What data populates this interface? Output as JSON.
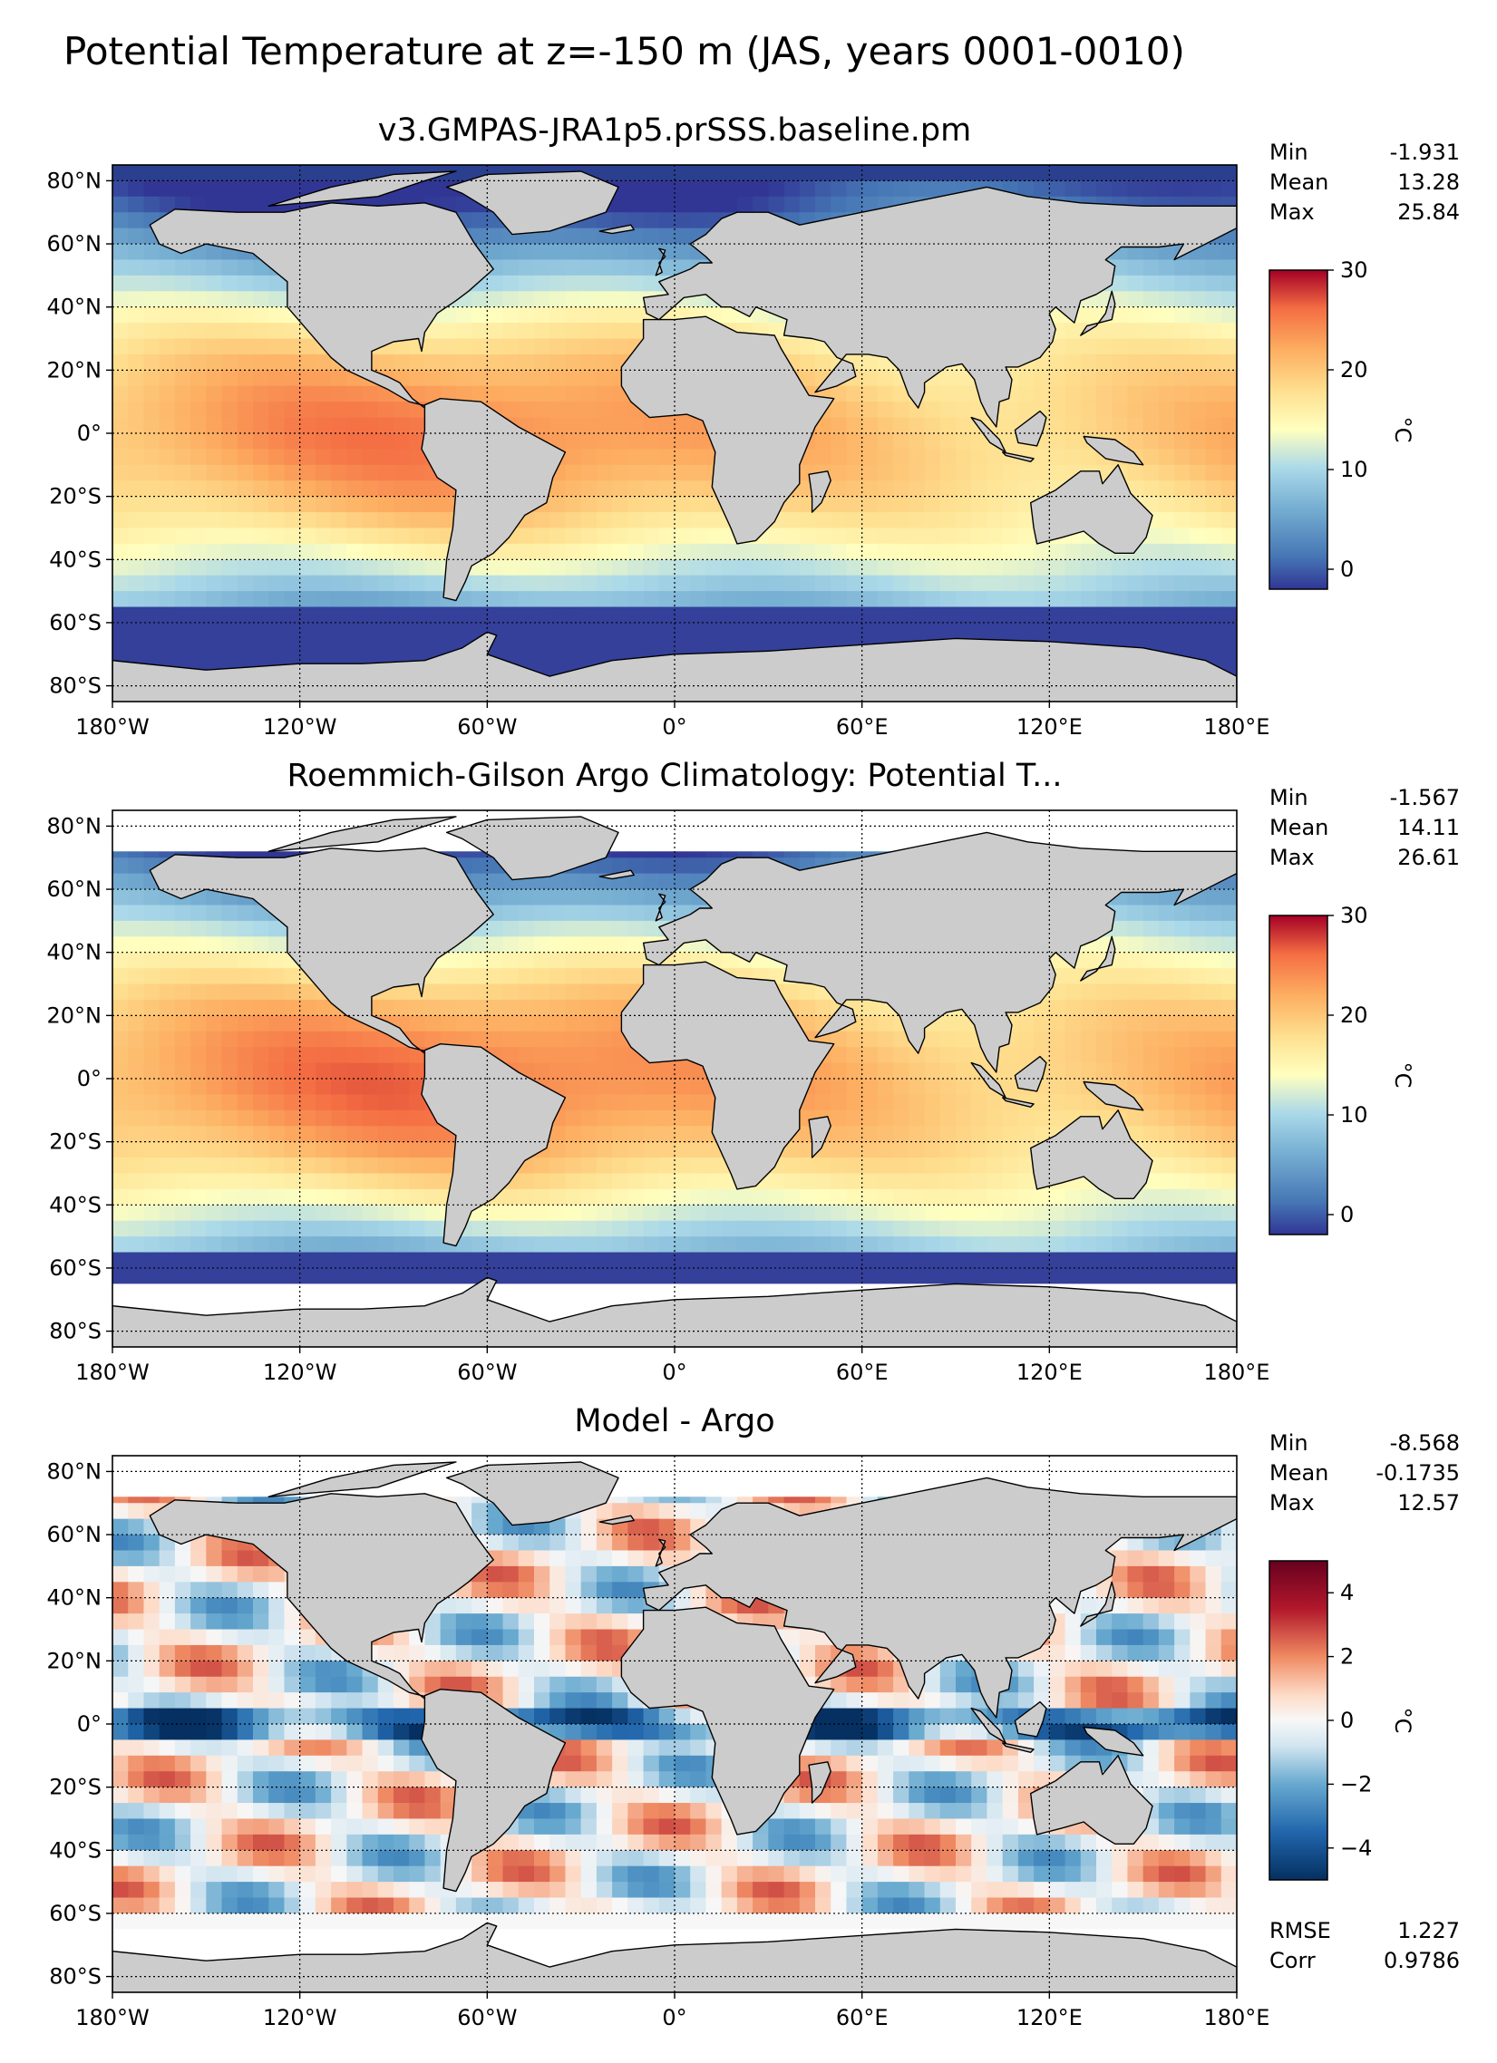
{
  "suptitle": "Potential Temperature at z=-150 m (JAS, years 0001-0010)",
  "panels": [
    {
      "title": "v3.GMPAS-JRA1p5.prSSS.baseline.pm",
      "stats": [
        {
          "label": "Min",
          "value": "-1.931"
        },
        {
          "label": "Mean",
          "value": "13.28"
        },
        {
          "label": "Max",
          "value": "25.84"
        }
      ],
      "colorbar": {
        "ticks": [
          "30",
          "20",
          "10",
          "0"
        ],
        "unit": "°C",
        "cmap": "RdYlBu_r",
        "range": [
          -2,
          30
        ]
      },
      "extra_stats": []
    },
    {
      "title": "Roemmich-Gilson Argo Climatology: Potential T...",
      "stats": [
        {
          "label": "Min",
          "value": "-1.567"
        },
        {
          "label": "Mean",
          "value": "14.11"
        },
        {
          "label": "Max",
          "value": "26.61"
        }
      ],
      "colorbar": {
        "ticks": [
          "30",
          "20",
          "10",
          "0"
        ],
        "unit": "°C",
        "cmap": "RdYlBu_r",
        "range": [
          -2,
          30
        ]
      },
      "extra_stats": []
    },
    {
      "title": "Model - Argo",
      "stats": [
        {
          "label": "Min",
          "value": "-8.568"
        },
        {
          "label": "Mean",
          "value": "-0.1735"
        },
        {
          "label": "Max",
          "value": "12.57"
        }
      ],
      "colorbar": {
        "ticks": [
          "4",
          "2",
          "0",
          "−2",
          "−4"
        ],
        "unit": "°C",
        "cmap": "RdBu_r",
        "range": [
          -5,
          5
        ]
      },
      "extra_stats": [
        {
          "label": "RMSE",
          "value": "1.227"
        },
        {
          "label": "Corr",
          "value": "0.9786"
        }
      ]
    }
  ],
  "axes": {
    "lat_ticks": [
      "80°N",
      "60°N",
      "40°N",
      "20°N",
      "0°",
      "20°S",
      "40°S",
      "60°S",
      "80°S"
    ],
    "lon_ticks": [
      "180°W",
      "120°W",
      "60°W",
      "0°",
      "60°E",
      "120°E",
      "180°E"
    ]
  },
  "chart_data": [
    {
      "type": "heatmap",
      "title": "v3.GMPAS-JRA1p5.prSSS.baseline.pm",
      "variable": "Potential Temperature",
      "units": "°C",
      "clim": [
        -2,
        30
      ],
      "colorbar_ticks": [
        0,
        10,
        20,
        30
      ],
      "xlim": [
        -180,
        180
      ],
      "ylim": [
        -85,
        85
      ],
      "x_ticks": [
        -180,
        -120,
        -60,
        0,
        60,
        120,
        180
      ],
      "y_ticks": [
        80,
        60,
        40,
        20,
        0,
        -20,
        -40,
        -60,
        -80
      ],
      "stats": {
        "min": -1.931,
        "mean": 13.28,
        "max": 25.84
      }
    },
    {
      "type": "heatmap",
      "title": "Roemmich-Gilson Argo Climatology: Potential T...",
      "variable": "Potential Temperature",
      "units": "°C",
      "clim": [
        -2,
        30
      ],
      "colorbar_ticks": [
        0,
        10,
        20,
        30
      ],
      "xlim": [
        -180,
        180
      ],
      "ylim": [
        -85,
        85
      ],
      "x_ticks": [
        -180,
        -120,
        -60,
        0,
        60,
        120,
        180
      ],
      "y_ticks": [
        80,
        60,
        40,
        20,
        0,
        -20,
        -40,
        -60,
        -80
      ],
      "stats": {
        "min": -1.567,
        "mean": 14.11,
        "max": 26.61
      }
    },
    {
      "type": "heatmap",
      "title": "Model - Argo",
      "variable": "Potential Temperature bias",
      "units": "°C",
      "clim": [
        -5,
        5
      ],
      "colorbar_ticks": [
        -4,
        -2,
        0,
        2,
        4
      ],
      "xlim": [
        -180,
        180
      ],
      "ylim": [
        -85,
        85
      ],
      "x_ticks": [
        -180,
        -120,
        -60,
        0,
        60,
        120,
        180
      ],
      "y_ticks": [
        80,
        60,
        40,
        20,
        0,
        -20,
        -40,
        -60,
        -80
      ],
      "stats": {
        "min": -8.568,
        "mean": -0.1735,
        "max": 12.57,
        "rmse": 1.227,
        "corr": 0.9786
      }
    }
  ]
}
